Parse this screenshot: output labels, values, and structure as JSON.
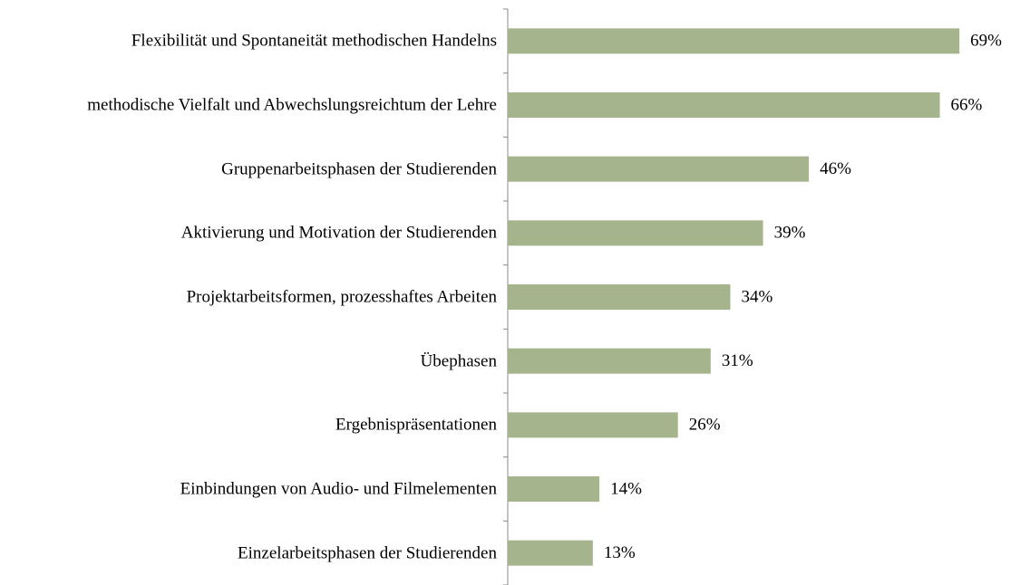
{
  "chart_data": {
    "type": "bar",
    "orientation": "horizontal",
    "categories": [
      "Flexibilität und Spontaneität methodischen Handelns",
      "methodische Vielfalt und Abwechslungsreichtum der Lehre",
      "Gruppenarbeitsphasen der Studierenden",
      "Aktivierung und Motivation der Studierenden",
      "Projektarbeitsformen, prozesshaftes Arbeiten",
      "Übephasen",
      "Ergebnispräsentationen",
      "Einbindungen von Audio- und Filmelementen",
      "Einzelarbeitsphasen der Studierenden"
    ],
    "values": [
      69,
      66,
      46,
      39,
      34,
      31,
      26,
      14,
      13
    ],
    "value_labels": [
      "69%",
      "66%",
      "46%",
      "39%",
      "34%",
      "31%",
      "26%",
      "14%",
      "13%"
    ],
    "color": "#a5b48d"
  }
}
